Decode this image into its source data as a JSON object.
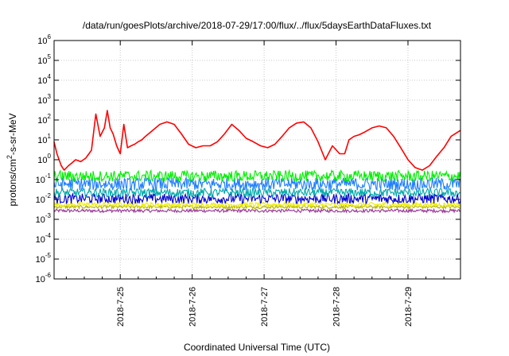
{
  "chart_data": {
    "type": "line",
    "title": "/data/run/goesPlots/archive/2018-07-29/17:00/flux/../flux/5daysEarthDataFluxes.txt",
    "xlabel": "Coordinated Universal Time (UTC)",
    "ylabel_parts": {
      "base": "protons/cm",
      "sup": "2",
      "rest": "-s-sr-MeV"
    },
    "y_scale": "log",
    "ylim": [
      1e-06,
      1000000.0
    ],
    "y_ticks": [
      {
        "base": "10",
        "exp": "-6"
      },
      {
        "base": "10",
        "exp": "-5"
      },
      {
        "base": "10",
        "exp": "-4"
      },
      {
        "base": "10",
        "exp": "-3"
      },
      {
        "base": "10",
        "exp": "-2"
      },
      {
        "base": "10",
        "exp": "-1"
      },
      {
        "base": "10",
        "exp": "0"
      },
      {
        "base": "10",
        "exp": "1"
      },
      {
        "base": "10",
        "exp": "2"
      },
      {
        "base": "10",
        "exp": "3"
      },
      {
        "base": "10",
        "exp": "4"
      },
      {
        "base": "10",
        "exp": "5"
      },
      {
        "base": "10",
        "exp": "6"
      }
    ],
    "xlim_days": [
      24.08,
      29.73
    ],
    "x_ticks": [
      "2018-7-25",
      "2018-7-26",
      "2018-7-27",
      "2018-7-28",
      "2018-7-29"
    ],
    "x_tick_days": [
      25,
      26,
      27,
      28,
      29
    ],
    "grid": true,
    "series": [
      {
        "color": "#ff0000",
        "x": [
          24.08,
          24.12,
          24.18,
          24.22,
          24.28,
          24.33,
          24.38,
          24.45,
          24.52,
          24.6,
          24.66,
          24.72,
          24.78,
          24.82,
          24.86,
          24.9,
          24.95,
          25.0,
          25.05,
          25.1,
          25.15,
          25.2,
          25.25,
          25.3,
          25.35,
          25.45,
          25.55,
          25.65,
          25.75,
          25.85,
          25.95,
          26.05,
          26.15,
          26.25,
          26.35,
          26.45,
          26.55,
          26.65,
          26.75,
          26.85,
          26.95,
          27.05,
          27.15,
          27.25,
          27.35,
          27.45,
          27.55,
          27.65,
          27.75,
          27.85,
          27.95,
          28.05,
          28.12,
          28.18,
          28.25,
          28.32,
          28.4,
          28.5,
          28.6,
          28.7,
          28.8,
          28.9,
          29.0,
          29.1,
          29.2,
          29.3,
          29.4,
          29.5,
          29.6,
          29.73
        ],
        "y": [
          8,
          2,
          0.5,
          0.3,
          0.5,
          0.7,
          1.0,
          0.8,
          1.2,
          3,
          200,
          15,
          40,
          300,
          40,
          20,
          5,
          2,
          60,
          4,
          5,
          6,
          8,
          10,
          15,
          30,
          60,
          80,
          60,
          20,
          6,
          4,
          5,
          5,
          8,
          20,
          60,
          30,
          12,
          8,
          5,
          4,
          6,
          15,
          40,
          70,
          80,
          40,
          8,
          1.0,
          5,
          2,
          2,
          10,
          15,
          18,
          25,
          40,
          50,
          40,
          15,
          4,
          1,
          0.4,
          0.3,
          0.5,
          1.5,
          4,
          15,
          30
        ]
      },
      {
        "color": "#00ee00",
        "base": 0.15,
        "jitter": 0.28
      },
      {
        "color": "#1f7fff",
        "base": 0.06,
        "jitter": 0.32
      },
      {
        "color": "#00aaaa",
        "base": 0.022,
        "jitter": 0.22
      },
      {
        "color": "#0000cc",
        "base": 0.011,
        "jitter": 0.25
      },
      {
        "color": "#eeee00",
        "base": 0.0055,
        "jitter": 0.12
      },
      {
        "color": "#b0b000",
        "base": 0.0042,
        "jitter": 0.08
      },
      {
        "color": "#993399",
        "base": 0.0027,
        "jitter": 0.08
      }
    ]
  }
}
